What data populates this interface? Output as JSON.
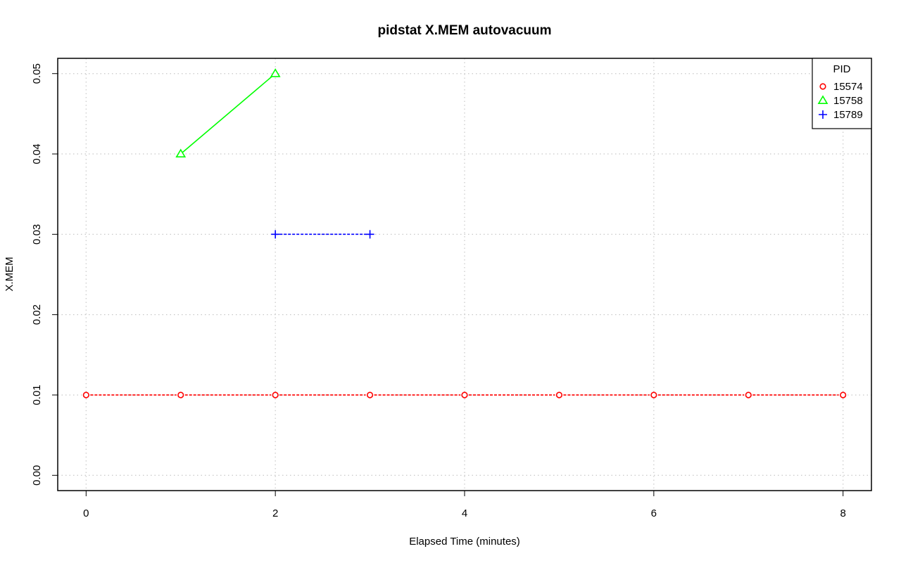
{
  "chart_data": {
    "type": "line",
    "title": "pidstat X.MEM autovacuum",
    "xlabel": "Elapsed Time (minutes)",
    "ylabel": "X.MEM",
    "xlim": [
      -0.3,
      8.3
    ],
    "ylim": [
      -0.0019,
      0.0519
    ],
    "x_ticks": [
      0,
      2,
      4,
      6,
      8
    ],
    "x_tick_labels": [
      "0",
      "2",
      "4",
      "6",
      "8"
    ],
    "y_ticks": [
      0.0,
      0.01,
      0.02,
      0.03,
      0.04,
      0.05
    ],
    "y_tick_labels": [
      "0.00",
      "0.01",
      "0.02",
      "0.03",
      "0.04",
      "0.05"
    ],
    "grid": true,
    "legend": {
      "title": "PID",
      "position": "top-right"
    },
    "series": [
      {
        "name": "15574",
        "color": "#ff0000",
        "marker": "circle",
        "line": "dashed",
        "x": [
          0,
          1,
          2,
          3,
          4,
          5,
          6,
          7,
          8
        ],
        "y": [
          0.01,
          0.01,
          0.01,
          0.01,
          0.01,
          0.01,
          0.01,
          0.01,
          0.01
        ]
      },
      {
        "name": "15758",
        "color": "#00ff00",
        "marker": "triangle",
        "line": "solid",
        "x": [
          1,
          2
        ],
        "y": [
          0.04,
          0.05
        ]
      },
      {
        "name": "15789",
        "color": "#0000ff",
        "marker": "plus",
        "line": "dashed",
        "x": [
          2,
          3
        ],
        "y": [
          0.03,
          0.03
        ]
      }
    ]
  }
}
